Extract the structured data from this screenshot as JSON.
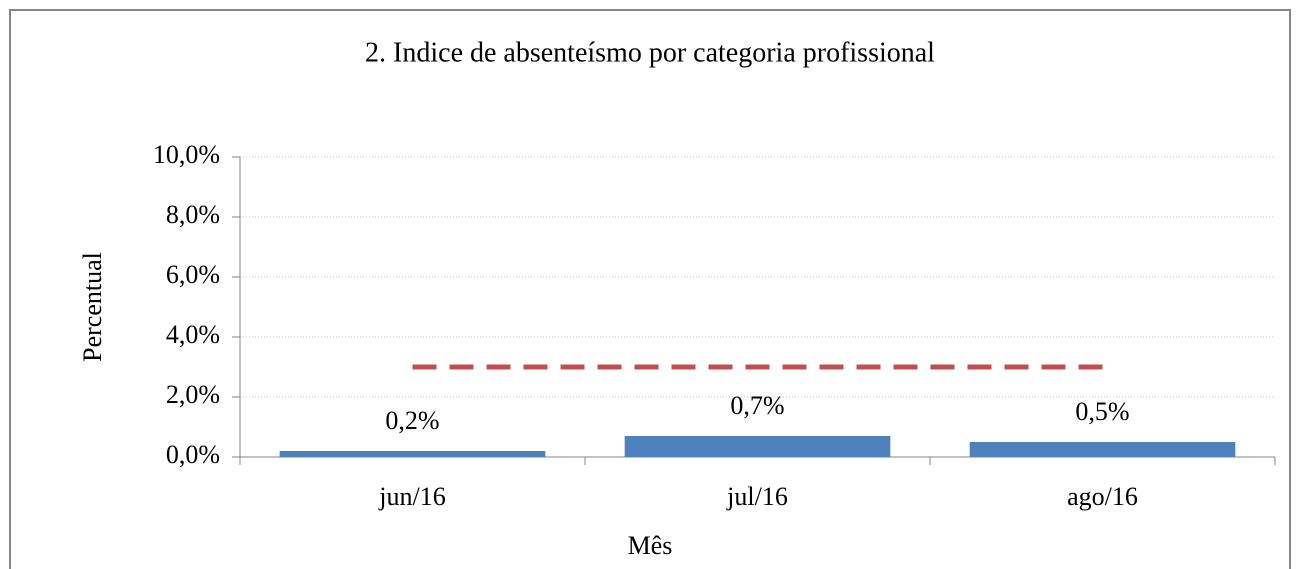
{
  "chart_data": {
    "type": "bar",
    "title": "2. Indice de absenteísmo por categoria profissional",
    "x_label": "Mês",
    "y_label": "Percentual",
    "categories": [
      "jun/16",
      "jul/16",
      "ago/16"
    ],
    "series": [
      {
        "type": "bar",
        "color": "#4f81bd",
        "values": [
          0.2,
          0.7,
          0.5
        ],
        "value_labels": [
          "0,2%",
          "0,7%",
          "0,5%"
        ]
      },
      {
        "type": "line",
        "color": "#c0504d",
        "dashed": true,
        "values": [
          3.0,
          3.0,
          3.0
        ]
      }
    ],
    "ylim": [
      0,
      10
    ],
    "yticks": [
      {
        "value": 0,
        "label": "0,0%"
      },
      {
        "value": 2,
        "label": "2,0%"
      },
      {
        "value": 4,
        "label": "4,0%"
      },
      {
        "value": 6,
        "label": "6,0%"
      },
      {
        "value": 8,
        "label": "8,0%"
      },
      {
        "value": 10,
        "label": "10,0%"
      }
    ],
    "grid": true
  }
}
